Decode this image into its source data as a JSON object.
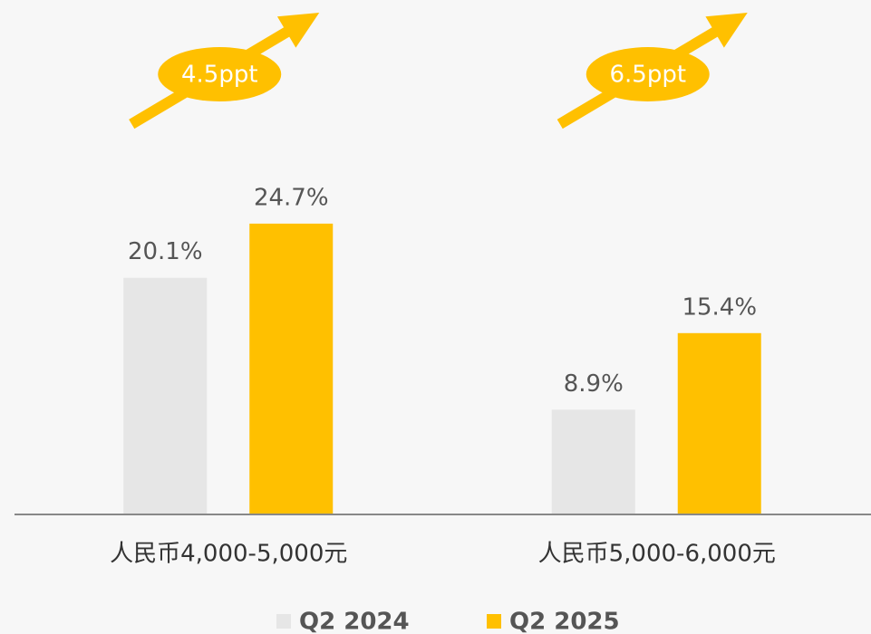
{
  "chart_data": {
    "type": "bar",
    "categories": [
      "人民币4,000-5,000元",
      "人民币5,000-6,000元"
    ],
    "series": [
      {
        "name": "Q2 2024",
        "color": "#e6e6e6",
        "values": [
          20.1,
          8.9
        ],
        "value_labels": [
          "20.1%",
          "8.9%"
        ]
      },
      {
        "name": "Q2 2025",
        "color": "#ffc000",
        "values": [
          24.7,
          15.4
        ],
        "value_labels": [
          "24.7%",
          "15.4%"
        ]
      }
    ],
    "annotations": [
      "4.5ppt",
      "6.5ppt"
    ],
    "ylim": [
      0,
      40
    ]
  }
}
